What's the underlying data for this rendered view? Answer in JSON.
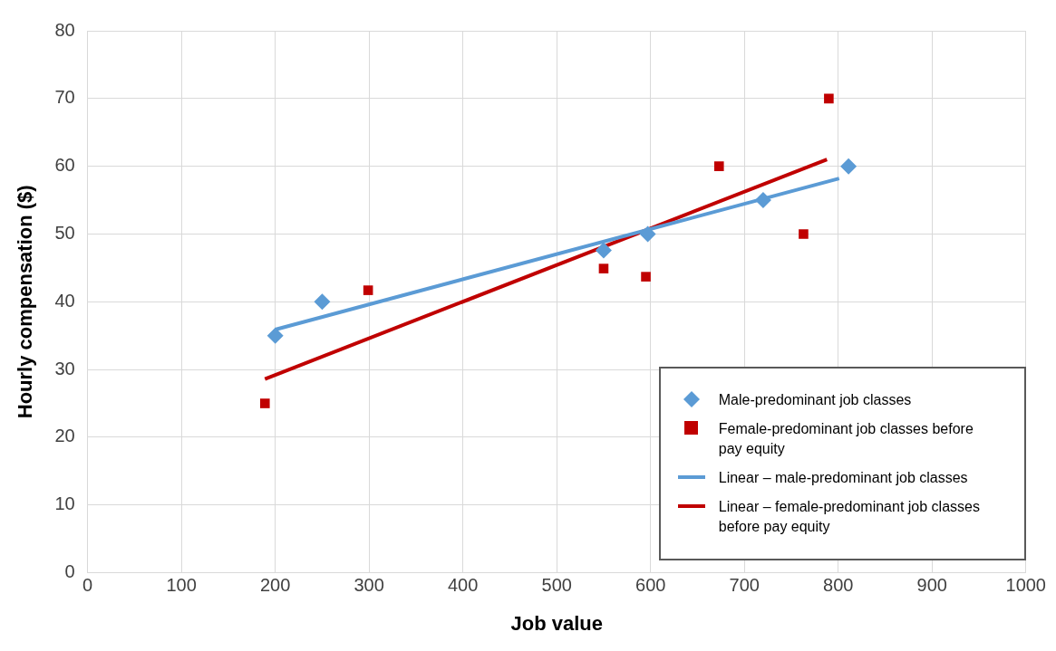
{
  "chart_data": {
    "type": "scatter",
    "xlabel": "Job value",
    "ylabel": "Hourly compensation ($)",
    "xlim": [
      0,
      1000
    ],
    "xticks": [
      0,
      100,
      200,
      300,
      400,
      500,
      600,
      700,
      800,
      900,
      1000
    ],
    "ylim": [
      0,
      80
    ],
    "yticks": [
      0,
      10,
      20,
      30,
      40,
      50,
      60,
      70,
      80
    ],
    "grid": true,
    "legend": "bottom right",
    "series": [
      {
        "name": "Male-predominant job classes",
        "type": "scatter",
        "marker": "diamond",
        "color": "#5b9bd5",
        "x": [
          200,
          250,
          550,
          597,
          720,
          811
        ],
        "values": [
          35,
          40,
          47.6,
          50,
          55,
          60
        ]
      },
      {
        "name": "Female-predominant job classes before pay equity",
        "type": "scatter",
        "marker": "square",
        "color": "#c00000",
        "x": [
          189,
          299,
          550,
          595,
          673,
          763,
          790
        ],
        "values": [
          25,
          41.7,
          44.9,
          43.7,
          60,
          50,
          70
        ]
      },
      {
        "name": "Linear – male-predominant job classes",
        "type": "line",
        "marker": "none",
        "color": "#5b9bd5",
        "x": [
          200,
          801
        ],
        "values": [
          35.9,
          58.2
        ]
      },
      {
        "name": "Linear – female-predominant job classes before pay equity",
        "type": "line",
        "marker": "none",
        "color": "#c00000",
        "x": [
          189,
          788
        ],
        "values": [
          28.6,
          61
        ]
      }
    ]
  }
}
